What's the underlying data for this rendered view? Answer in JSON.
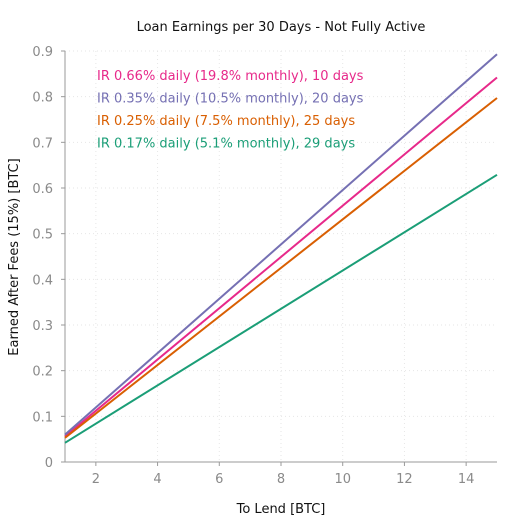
{
  "chart_data": {
    "type": "line",
    "title": "Loan Earnings per 30 Days - Not Fully Active",
    "xlabel": "To Lend [BTC]",
    "ylabel": "Earned After Fees (15%) [BTC]",
    "xlim": [
      1,
      15
    ],
    "ylim": [
      0,
      0.9
    ],
    "xticks": [
      "2",
      "4",
      "6",
      "8",
      "10",
      "12",
      "14"
    ],
    "yticks": [
      "0",
      "0.1",
      "0.2",
      "0.3",
      "0.4",
      "0.5",
      "0.6",
      "0.7",
      "0.8",
      "0.9"
    ],
    "grid": true,
    "legend_position": "top-left",
    "series": [
      {
        "name": "IR 0.66% daily (19.8% monthly), 10 days",
        "color": "#e7298a",
        "x": [
          1,
          15
        ],
        "y": [
          0.056,
          0.842
        ]
      },
      {
        "name": "IR 0.35% daily (10.5% monthly), 20 days",
        "color": "#7570b3",
        "x": [
          1,
          15
        ],
        "y": [
          0.06,
          0.893
        ]
      },
      {
        "name": "IR 0.25% daily (7.5% monthly), 25 days",
        "color": "#d95f02",
        "x": [
          1,
          15
        ],
        "y": [
          0.053,
          0.797
        ]
      },
      {
        "name": "IR 0.17% daily (5.1% monthly), 29 days",
        "color": "#1b9e77",
        "x": [
          1,
          15
        ],
        "y": [
          0.042,
          0.629
        ]
      }
    ]
  }
}
